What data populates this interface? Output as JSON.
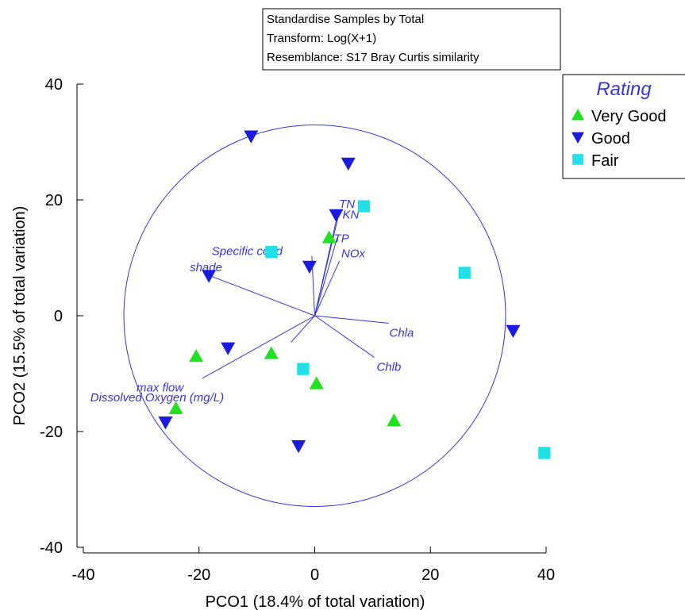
{
  "chart_data": {
    "type": "scatter",
    "info_box": [
      "Standardise Samples by Total",
      "Transform: Log(X+1)",
      "Resemblance: S17 Bray Curtis similarity"
    ],
    "xlabel": "PCO1 (18.4% of total variation)",
    "ylabel": "PCO2 (15.5% of total variation)",
    "xlim": [
      -40,
      40
    ],
    "ylim": [
      -40,
      40
    ],
    "x_ticks": [
      -40,
      -20,
      0,
      20,
      40
    ],
    "y_ticks": [
      -40,
      -20,
      0,
      20,
      40
    ],
    "x_tick_labels": [
      "-40",
      "-20",
      "0",
      "20",
      "40"
    ],
    "y_tick_labels": [
      "-40",
      "-20",
      "0",
      "20",
      "40"
    ],
    "correlation_circle_radius": 33,
    "legend": {
      "title": "Rating",
      "placement": "top-right",
      "entries": [
        "Very Good",
        "Good",
        "Fair"
      ]
    },
    "series": [
      {
        "name": "Very Good",
        "marker": "triangle-up",
        "color": "#22e022",
        "points": [
          {
            "x": 2.5,
            "y": 13.5
          },
          {
            "x": -20.5,
            "y": -7
          },
          {
            "x": -7.5,
            "y": -6.5
          },
          {
            "x": -24,
            "y": -16
          },
          {
            "x": 0.3,
            "y": -11.7
          },
          {
            "x": 13.7,
            "y": -18.1
          }
        ]
      },
      {
        "name": "Good",
        "marker": "triangle-down",
        "color": "#1a1ae0",
        "points": [
          {
            "x": -11,
            "y": 31
          },
          {
            "x": 5.8,
            "y": 26.3
          },
          {
            "x": 3.7,
            "y": 17.4
          },
          {
            "x": -0.9,
            "y": 8.5
          },
          {
            "x": -18.3,
            "y": 6.9
          },
          {
            "x": -15,
            "y": -5.6
          },
          {
            "x": -25.8,
            "y": -18.4
          },
          {
            "x": -2.8,
            "y": -22.5
          },
          {
            "x": 34.3,
            "y": -2.6
          }
        ]
      },
      {
        "name": "Fair",
        "marker": "square",
        "color": "#22e0e8",
        "points": [
          {
            "x": 8.5,
            "y": 18.9
          },
          {
            "x": -7.5,
            "y": 11
          },
          {
            "x": 25.9,
            "y": 7.4
          },
          {
            "x": -2,
            "y": -9.2
          },
          {
            "x": 39.7,
            "y": -23.7
          }
        ]
      }
    ],
    "vectors": [
      {
        "label": "TN",
        "x": 4.1,
        "y": 18.1,
        "label_x": 4.2,
        "label_y": 18.6
      },
      {
        "label": "KN",
        "x": 4.2,
        "y": 17.7,
        "label_x": 4.8,
        "label_y": 16.8
      },
      {
        "label": "TP",
        "x": 3.9,
        "y": 13.5,
        "label_x": 3.3,
        "label_y": 12.7
      },
      {
        "label": "NOx",
        "x": 4.3,
        "y": 9.5,
        "label_x": 4.6,
        "label_y": 10.1
      },
      {
        "label": "Specific cond",
        "x": -0.5,
        "y": 10.3,
        "label_x": -17.8,
        "label_y": 10.5
      },
      {
        "label": "shade",
        "x": -19.2,
        "y": 7.3,
        "label_x": -21.6,
        "label_y": 7.7
      },
      {
        "label": "Chla",
        "x": 12.8,
        "y": -1.3,
        "label_x": 12.9,
        "label_y": -3.6
      },
      {
        "label": "Chlb",
        "x": 10.3,
        "y": -7.2,
        "label_x": 10.7,
        "label_y": -9.5
      },
      {
        "label": "max flow",
        "x": -19.4,
        "y": -10.8,
        "label_x": -30.8,
        "label_y": -13.1
      },
      {
        "label": "Dissolved Oxygen (mg/L)",
        "x": -4.1,
        "y": -4.6,
        "label_x": -38.8,
        "label_y": -14.8
      }
    ]
  }
}
